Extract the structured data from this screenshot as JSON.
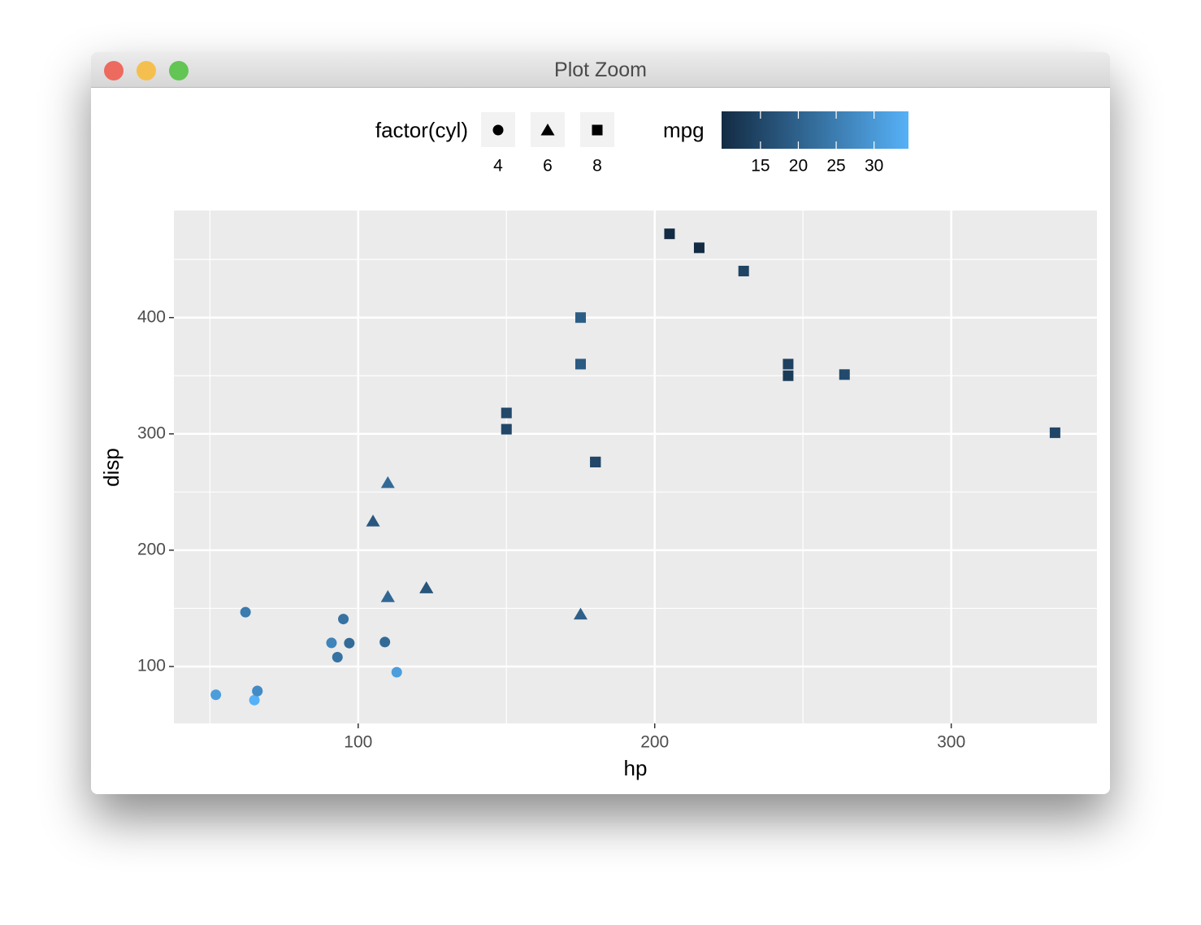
{
  "window_title": "Plot Zoom",
  "chart_data": {
    "type": "scatter",
    "xlabel": "hp",
    "ylabel": "disp",
    "shape_legend_title": "factor(cyl)",
    "series": [
      {
        "name": "4",
        "shape": "circle",
        "x": [
          93,
          62,
          95,
          66,
          52,
          65,
          97,
          66,
          91,
          113,
          109
        ],
        "values": [
          108,
          146.7,
          140.8,
          78.7,
          75.7,
          71.1,
          120.1,
          79,
          120.3,
          95.1,
          121
        ],
        "mpg": [
          22.8,
          24.4,
          22.8,
          32.4,
          30.4,
          33.9,
          21.5,
          27.3,
          26,
          30.4,
          21.4
        ]
      },
      {
        "name": "6",
        "shape": "triangle",
        "x": [
          110,
          110,
          110,
          105,
          123,
          123,
          175
        ],
        "values": [
          160,
          160,
          258,
          225,
          167.6,
          167.6,
          145
        ],
        "mpg": [
          21,
          21,
          21.4,
          18.1,
          19.2,
          17.8,
          19.7
        ]
      },
      {
        "name": "8",
        "shape": "square",
        "x": [
          175,
          245,
          180,
          180,
          180,
          205,
          215,
          230,
          150,
          150,
          245,
          175,
          264,
          335
        ],
        "values": [
          360,
          360,
          275.8,
          275.8,
          275.8,
          472,
          460,
          440,
          318,
          304,
          350,
          400,
          351,
          301
        ],
        "mpg": [
          18.7,
          14.3,
          16.4,
          17.3,
          15.2,
          10.4,
          10.4,
          14.7,
          15.5,
          15.2,
          13.3,
          19.2,
          15.8,
          15
        ]
      }
    ],
    "colorbar": {
      "title": "mpg",
      "limits": [
        10.4,
        33.9
      ],
      "ticks": [
        15,
        20,
        25,
        30
      ],
      "low": "#132B43",
      "high": "#56B1F7"
    },
    "xlim": [
      37.85,
      349.15
    ],
    "xticks": [
      100,
      200,
      300
    ],
    "xminor": [
      50,
      150,
      250
    ],
    "ylim": [
      51.055,
      492.045
    ],
    "yticks": [
      100,
      200,
      300,
      400
    ],
    "yminor": [
      150,
      250,
      350,
      450
    ],
    "grid": true,
    "panel_color": "#EBEBEB",
    "legend_position": "top"
  }
}
